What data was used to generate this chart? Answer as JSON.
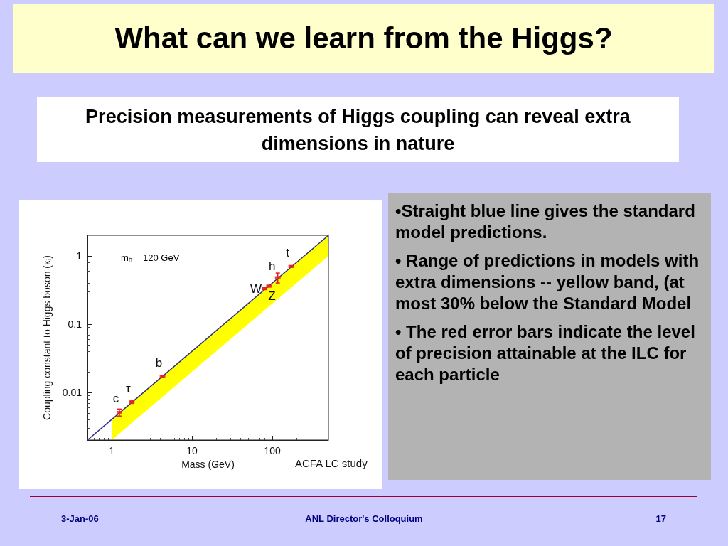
{
  "chart_data": {
    "type": "scatter",
    "title": "What can we learn from the Higgs?",
    "subtitle": "Precision measurements of Higgs coupling can reveal extra dimensions in nature",
    "xlabel": "Mass (GeV)",
    "ylabel": "Coupling constant to Higgs boson (κᵢ)",
    "log": "xy",
    "xlim": [
      0.5,
      500
    ],
    "ylim": [
      0.002,
      2
    ],
    "xticks": [
      1,
      10,
      100
    ],
    "yticks": [
      0.01,
      0.1,
      1
    ],
    "series": [
      {
        "type": "line",
        "color": "#2b2b8c",
        "x": [
          0.5,
          1,
          500
        ],
        "values": [
          0.002,
          0.004,
          2
        ],
        "lower": [
          null,
          0.002,
          1
        ],
        "upper": [
          null,
          0.004,
          2
        ]
      },
      {
        "marker": "square",
        "color": "#e02020",
        "x": [
          1.25,
          1.78,
          4.3,
          80,
          91,
          117,
          172
        ],
        "values": [
          0.0051,
          0.0072,
          0.017,
          0.33,
          0.36,
          0.48,
          0.7
        ],
        "errors": [
          [
            0.0045,
            0.0057
          ],
          [
            0.0069,
            0.0075
          ],
          [
            0.0165,
            0.0175
          ],
          [
            0.32,
            0.34
          ],
          [
            0.35,
            0.37
          ],
          [
            0.4,
            0.56
          ],
          [
            0.68,
            0.72
          ]
        ]
      }
    ],
    "annotations": [
      "m$_{h}$ = 120 GeV",
      "ACFA LC study",
      "•Straight blue line gives the standard model predictions.",
      "• Range of predictions in models with extra dimensions -- yellow band, (at most 30% below the Standard Model",
      "• The red error bars indicate the level of precision attainable at the ILC for each particle",
      "3-Jan-06",
      "ANL Director's Colloquium",
      "17",
      {
        "text": "c",
        "x": 1.25,
        "y": 0.0051
      },
      {
        "text": "τ",
        "x": 1.78,
        "y": 0.0072
      },
      {
        "text": "b",
        "x": 4.3,
        "y": 0.017
      },
      {
        "text": "W",
        "x": 80,
        "y": 0.33
      },
      {
        "text": "Z",
        "x": 91,
        "y": 0.36
      },
      {
        "text": "h",
        "x": 117,
        "y": 0.48
      },
      {
        "text": "t",
        "x": 172,
        "y": 0.7
      }
    ]
  }
}
